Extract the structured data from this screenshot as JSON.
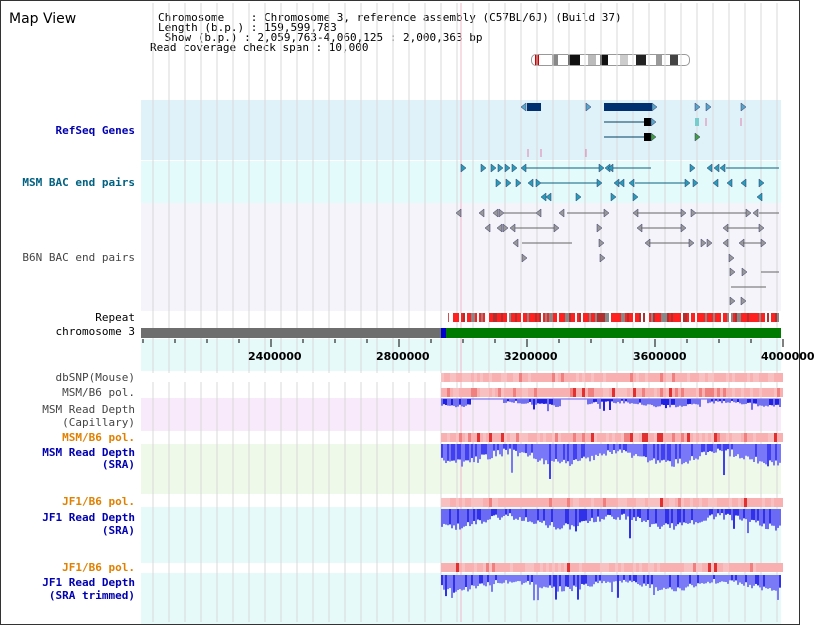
{
  "view": {
    "title": "Map View"
  },
  "info": {
    "chromosome_line": "Chromosome    : Chromosome 3, reference assembly (C57BL/6J) (Build 37)",
    "length_line": "Length (b.p.) : 159,599,783",
    "show_line": " Show (b.p.) : 2,059,763-4,060,125 : 2,000,363 bp",
    "coverage_line": "Read coverage check span : 10,000"
  },
  "tracks": {
    "refseq": "RefSeq Genes",
    "msm_bac": "MSM BAC end pairs",
    "b6n_bac": "B6N BAC end pairs",
    "repeat": "Repeat",
    "chromosome": "chromosome 3",
    "dbsnp": "dbSNP(Mouse)",
    "msm_b6_pol_cap": "MSM/B6 pol.",
    "msm_depth_cap_1": "MSM Read Depth",
    "msm_depth_cap_2": "(Capillary)",
    "msm_b6_pol_sra": "MSM/B6 pol.",
    "msm_depth_sra_1": "MSM Read Depth",
    "msm_depth_sra_2": "(SRA)",
    "jf1_b6_pol_sra": "JF1/B6 pol.",
    "jf1_depth_sra_1": "JF1 Read Depth",
    "jf1_depth_sra_2": "(SRA)",
    "jf1_b6_pol_trim": "JF1/B6 pol.",
    "jf1_depth_trim_1": "JF1 Read Depth",
    "jf1_depth_trim_2": "(SRA trimmed)"
  },
  "axis": {
    "ticks": [
      "2400000",
      "2800000",
      "3200000",
      "3600000",
      "4000000"
    ]
  },
  "colors": {
    "refseq_bg": "#dff2fa",
    "msm_bg": "#e3fbfb",
    "b6n_bg": "#f4f4fa",
    "capillary_bg": "#f8eafa",
    "sra_bg": "#eef9ea",
    "jf1_bg": "#e6fafa",
    "chrom_gray": "#6e6e6e",
    "chrom_green": "#007a00",
    "chrom_blue": "#0000cc",
    "pol_red": "#e03030",
    "depth_blue": "#4848f0",
    "label_blue": "#0000b0",
    "label_teal": "#006080",
    "label_orange": "#e08000",
    "label_gray": "#444444"
  }
}
